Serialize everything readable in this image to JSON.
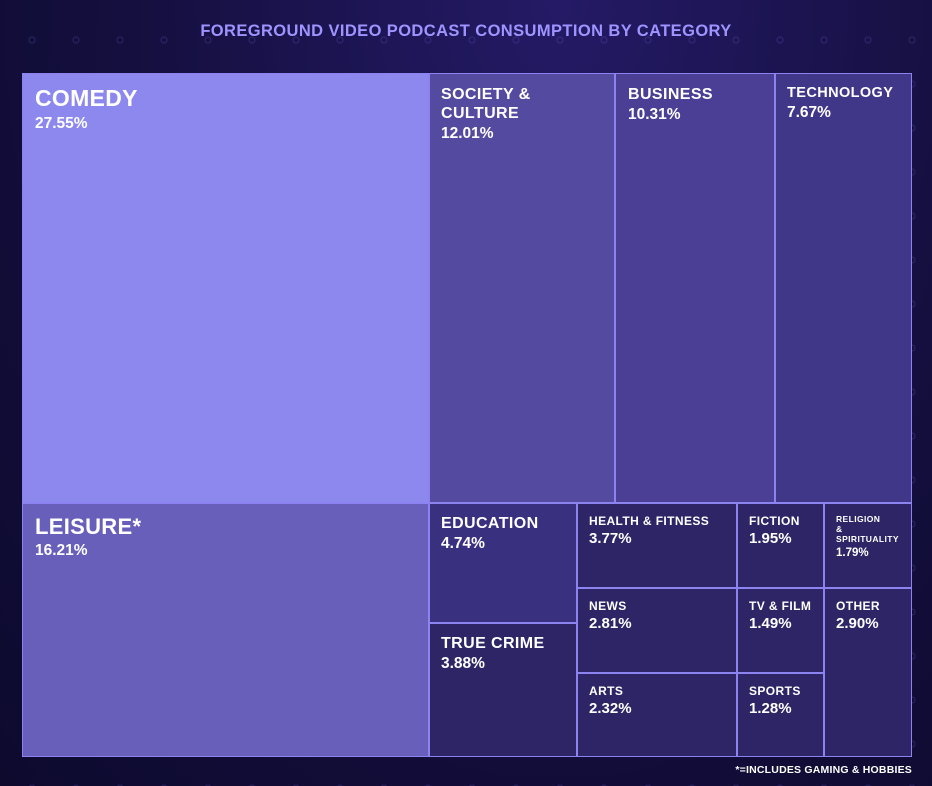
{
  "chart_data": {
    "type": "treemap",
    "title": "FOREGROUND VIDEO PODCAST CONSUMPTION BY CATEGORY",
    "unit": "%",
    "items": [
      {
        "label": "COMEDY",
        "value": 27.55,
        "display": "27.55%"
      },
      {
        "label": "LEISURE*",
        "value": 16.21,
        "display": "16.21%"
      },
      {
        "label": "SOCIETY & CULTURE",
        "value": 12.01,
        "display": "12.01%"
      },
      {
        "label": "BUSINESS",
        "value": 10.31,
        "display": "10.31%"
      },
      {
        "label": "TECHNOLOGY",
        "value": 7.67,
        "display": "7.67%"
      },
      {
        "label": "EDUCATION",
        "value": 4.74,
        "display": "4.74%"
      },
      {
        "label": "TRUE CRIME",
        "value": 3.88,
        "display": "3.88%"
      },
      {
        "label": "HEALTH & FITNESS",
        "value": 3.77,
        "display": "3.77%"
      },
      {
        "label": "NEWS",
        "value": 2.81,
        "display": "2.81%"
      },
      {
        "label": "ARTS",
        "value": 2.32,
        "display": "2.32%"
      },
      {
        "label": "FICTION",
        "value": 1.95,
        "display": "1.95%"
      },
      {
        "label": "TV & FILM",
        "value": 1.49,
        "display": "1.49%"
      },
      {
        "label": "SPORTS",
        "value": 1.28,
        "display": "1.28%"
      },
      {
        "label": "RELIGION & SPIRITUALITY",
        "value": 1.79,
        "display": "1.79%"
      },
      {
        "label": "OTHER",
        "value": 2.9,
        "display": "2.90%"
      }
    ],
    "footnote": "*=INCLUDES GAMING & HOBBIES"
  },
  "colors": {
    "background": "#110c38",
    "title": "#9f94ff",
    "border": "#8c83f0",
    "largest": "#8c88ee",
    "large": "#675fb9",
    "medium": "#544a9f",
    "small": "#2e2566"
  }
}
